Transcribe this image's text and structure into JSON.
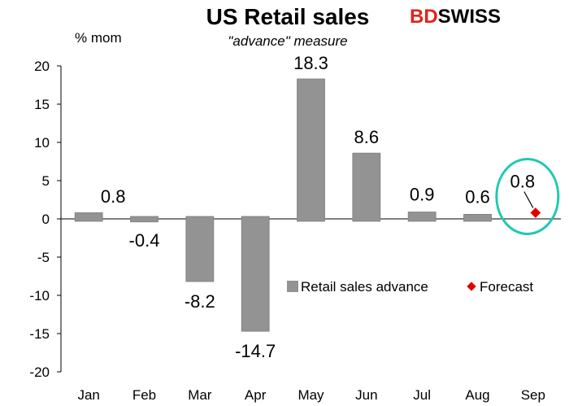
{
  "brand": {
    "part1": "BD",
    "part2": "SWISS",
    "color": "#e2231a"
  },
  "chart_data": {
    "type": "bar",
    "title": "US Retail sales",
    "subtitle": "\"advance\" measure",
    "ylabel": "% mom",
    "xlabel": "",
    "categories": [
      "Jan",
      "Feb",
      "Mar",
      "Apr",
      "May",
      "Jun",
      "Jul",
      "Aug",
      "Sep"
    ],
    "ylim": [
      -20,
      20
    ],
    "yticks": [
      20,
      15,
      10,
      5,
      0,
      -5,
      -10,
      -15,
      -20
    ],
    "grid": false,
    "legend_position": "lower-right",
    "series": [
      {
        "name": "Retail sales advance",
        "kind": "bar",
        "color": "#939393",
        "values": [
          0.8,
          -0.4,
          -8.2,
          -14.7,
          18.3,
          8.6,
          0.9,
          0.6,
          null
        ],
        "labels": [
          "0.8",
          "-0.4",
          "-8.2",
          "-14.7",
          "18.3",
          "8.6",
          "0.9",
          "0.6",
          null
        ]
      },
      {
        "name": "Forecast",
        "kind": "point",
        "marker": "diamond",
        "color": "#e00000",
        "values": [
          null,
          null,
          null,
          null,
          null,
          null,
          null,
          null,
          0.8
        ],
        "labels": [
          null,
          null,
          null,
          null,
          null,
          null,
          null,
          null,
          "0.8"
        ]
      }
    ],
    "annotations": [
      {
        "type": "ellipse",
        "target": "Sep",
        "color": "#1fc9b0"
      }
    ]
  }
}
